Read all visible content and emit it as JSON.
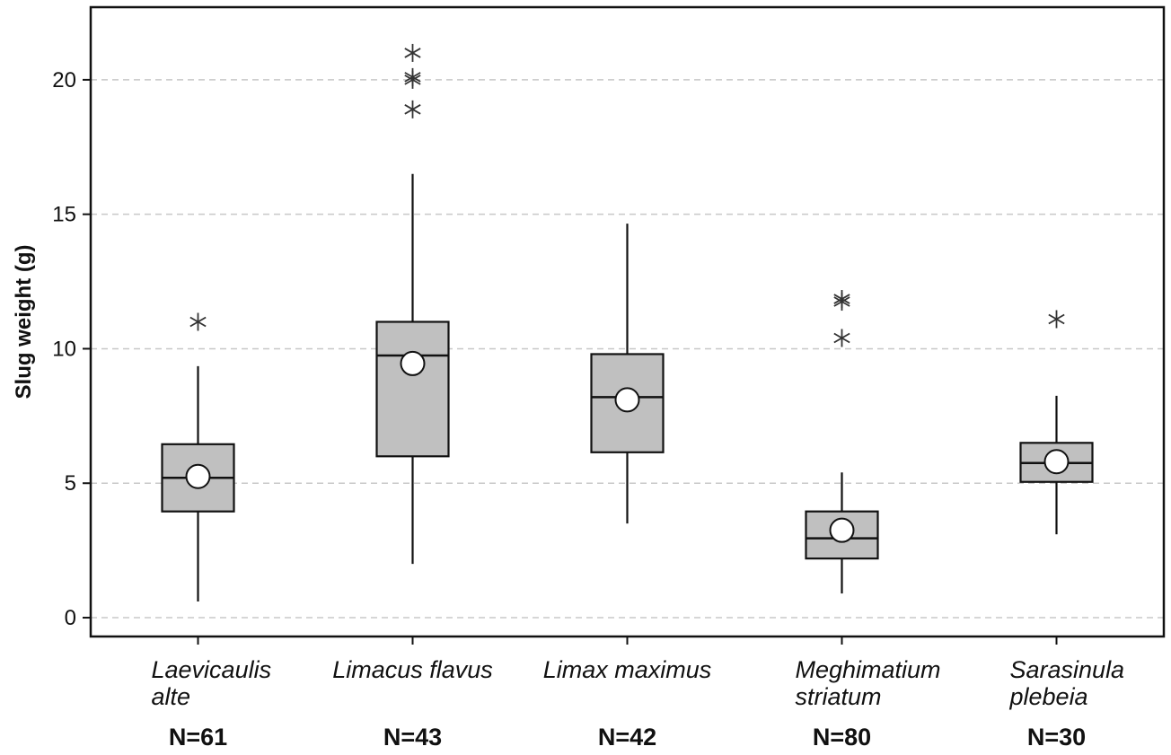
{
  "chart_data": {
    "type": "boxplot",
    "ylabel": "Slug weight (g)",
    "xlabel": "",
    "ylim": [
      -0.7,
      22.7
    ],
    "yticks": [
      0,
      5,
      10,
      15,
      20
    ],
    "grid": "horizontal dashed",
    "colors": {
      "box_fill": "#c0c0c0",
      "stroke": "#111111",
      "grid": "#c8c8c8",
      "mean_marker": "#ffffff"
    },
    "categories": [
      {
        "lines": [
          "Laevicaulis",
          "alte"
        ],
        "n_label": "N=61",
        "whisker_low": 0.6,
        "q1": 3.95,
        "median": 5.2,
        "q3": 6.45,
        "whisker_high": 9.35,
        "mean": 5.25,
        "outliers": [
          11.0
        ]
      },
      {
        "lines": [
          "Limacus flavus"
        ],
        "n_label": "N=43",
        "whisker_low": 2.0,
        "q1": 6.0,
        "median": 9.75,
        "q3": 11.0,
        "whisker_high": 16.5,
        "mean": 9.45,
        "outliers": [
          18.9,
          20.0,
          20.1,
          21.0
        ]
      },
      {
        "lines": [
          "Limax maximus"
        ],
        "n_label": "N=42",
        "whisker_low": 3.5,
        "q1": 6.15,
        "median": 8.2,
        "q3": 9.8,
        "whisker_high": 14.65,
        "mean": 8.1,
        "outliers": []
      },
      {
        "lines": [
          "Meghimatium",
          "striatum"
        ],
        "n_label": "N=80",
        "whisker_low": 0.9,
        "q1": 2.2,
        "median": 2.95,
        "q3": 3.95,
        "whisker_high": 5.4,
        "mean": 3.25,
        "outliers": [
          10.4,
          11.75,
          11.85
        ]
      },
      {
        "lines": [
          "Sarasinula",
          "plebeia"
        ],
        "n_label": "N=30",
        "whisker_low": 3.1,
        "q1": 5.05,
        "median": 5.75,
        "q3": 6.5,
        "whisker_high": 8.25,
        "mean": 5.8,
        "outliers": [
          11.1
        ]
      }
    ]
  }
}
